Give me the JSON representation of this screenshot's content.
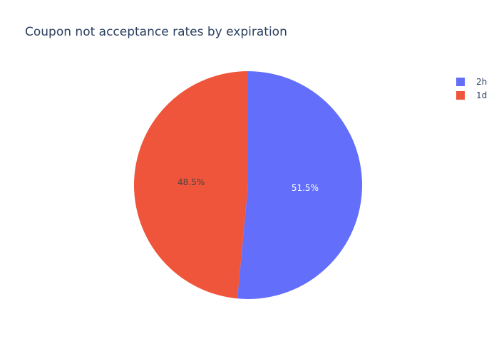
{
  "chart_data": {
    "type": "pie",
    "title": "Coupon not acceptance rates by expiration",
    "categories": [
      "2h",
      "1d"
    ],
    "values": [
      51.5,
      48.5
    ],
    "value_labels": [
      "51.5%",
      "48.5%"
    ],
    "colors": [
      "#636efa",
      "#EF553B"
    ],
    "label_colors": [
      "#ffffff",
      "#444444"
    ],
    "legend_position": "top-right",
    "direction": "clockwise",
    "start_angle": "top"
  }
}
